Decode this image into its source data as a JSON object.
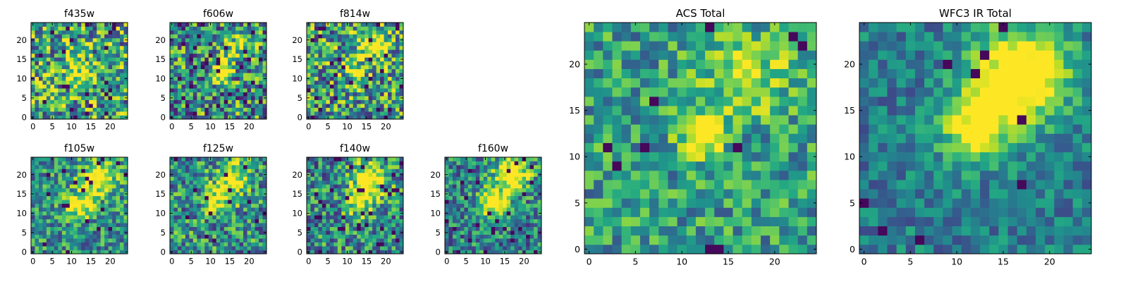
{
  "chart_data": [
    {
      "type": "heatmap",
      "title": "f435w",
      "xticks": [
        0,
        5,
        10,
        15,
        20
      ],
      "yticks": [
        0,
        5,
        10,
        15,
        20
      ],
      "grid": [
        25,
        25
      ],
      "seed": 11,
      "blobs": [
        {
          "x": 12,
          "y": 12,
          "s": 2.5,
          "a": 0.25
        }
      ],
      "noise": 0.55,
      "base": 0.58,
      "dark": 0.04
    },
    {
      "type": "heatmap",
      "title": "f606w",
      "xticks": [
        0,
        5,
        10,
        15,
        20
      ],
      "yticks": [
        0,
        5,
        10,
        15,
        20
      ],
      "grid": [
        25,
        25
      ],
      "seed": 23,
      "blobs": [
        {
          "x": 13,
          "y": 12,
          "s": 2.0,
          "a": 0.35
        },
        {
          "x": 17,
          "y": 19,
          "s": 2.5,
          "a": 0.2
        }
      ],
      "noise": 0.55,
      "base": 0.5,
      "dark": 0.04
    },
    {
      "type": "heatmap",
      "title": "f814w",
      "xticks": [
        0,
        5,
        10,
        15,
        20
      ],
      "yticks": [
        0,
        5,
        10,
        15,
        20
      ],
      "grid": [
        25,
        25
      ],
      "seed": 37,
      "blobs": [
        {
          "x": 16,
          "y": 19,
          "s": 2.5,
          "a": 0.4
        },
        {
          "x": 12,
          "y": 12,
          "s": 2.0,
          "a": 0.25
        }
      ],
      "noise": 0.55,
      "base": 0.55,
      "dark": 0.04
    },
    {
      "type": "heatmap",
      "title": "f105w",
      "xticks": [
        0,
        5,
        10,
        15,
        20
      ],
      "yticks": [
        0,
        5,
        10,
        15,
        20
      ],
      "grid": [
        25,
        25
      ],
      "seed": 41,
      "blobs": [
        {
          "x": 17,
          "y": 19,
          "s": 3.0,
          "a": 0.45
        },
        {
          "x": 12,
          "y": 12,
          "s": 2.5,
          "a": 0.35
        }
      ],
      "noise": 0.4,
      "base": 0.5,
      "dark": 0.03
    },
    {
      "type": "heatmap",
      "title": "f125w",
      "xticks": [
        0,
        5,
        10,
        15,
        20
      ],
      "yticks": [
        0,
        5,
        10,
        15,
        20
      ],
      "grid": [
        25,
        25
      ],
      "seed": 53,
      "blobs": [
        {
          "x": 16,
          "y": 19,
          "s": 3.0,
          "a": 0.35
        },
        {
          "x": 12,
          "y": 13,
          "s": 2.5,
          "a": 0.3
        }
      ],
      "noise": 0.45,
      "base": 0.5,
      "dark": 0.03
    },
    {
      "type": "heatmap",
      "title": "f140w",
      "xticks": [
        0,
        5,
        10,
        15,
        20
      ],
      "yticks": [
        0,
        5,
        10,
        15,
        20
      ],
      "grid": [
        25,
        25
      ],
      "seed": 67,
      "blobs": [
        {
          "x": 16,
          "y": 19,
          "s": 3.0,
          "a": 0.45
        },
        {
          "x": 13,
          "y": 13,
          "s": 2.5,
          "a": 0.35
        }
      ],
      "noise": 0.45,
      "base": 0.48,
      "dark": 0.04
    },
    {
      "type": "heatmap",
      "title": "f160w",
      "xticks": [
        0,
        5,
        10,
        15,
        20
      ],
      "yticks": [
        0,
        5,
        10,
        15,
        20
      ],
      "grid": [
        25,
        25
      ],
      "seed": 79,
      "blobs": [
        {
          "x": 17,
          "y": 20,
          "s": 3.0,
          "a": 0.5
        },
        {
          "x": 12,
          "y": 13,
          "s": 2.5,
          "a": 0.5
        }
      ],
      "noise": 0.4,
      "base": 0.45,
      "dark": 0.05
    },
    {
      "type": "heatmap",
      "title": "ACS Total",
      "xticks": [
        0,
        5,
        10,
        15,
        20
      ],
      "yticks": [
        0,
        5,
        10,
        15,
        20
      ],
      "grid": [
        25,
        25
      ],
      "seed": 97,
      "blobs": [
        {
          "x": 12,
          "y": 12,
          "s": 1.5,
          "a": 0.45
        },
        {
          "x": 17,
          "y": 19,
          "s": 3.0,
          "a": 0.25
        }
      ],
      "noise": 0.35,
      "base": 0.55,
      "dark": 0.02
    },
    {
      "type": "heatmap",
      "title": "WFC3 IR Total",
      "xticks": [
        0,
        5,
        10,
        15,
        20
      ],
      "yticks": [
        0,
        5,
        10,
        15,
        20
      ],
      "grid": [
        25,
        25
      ],
      "seed": 113,
      "blobs": [
        {
          "x": 17,
          "y": 19,
          "s": 3.5,
          "a": 0.55
        },
        {
          "x": 12,
          "y": 13,
          "s": 2.5,
          "a": 0.45
        }
      ],
      "noise": 0.25,
      "base": 0.42,
      "dark": 0.02
    }
  ]
}
